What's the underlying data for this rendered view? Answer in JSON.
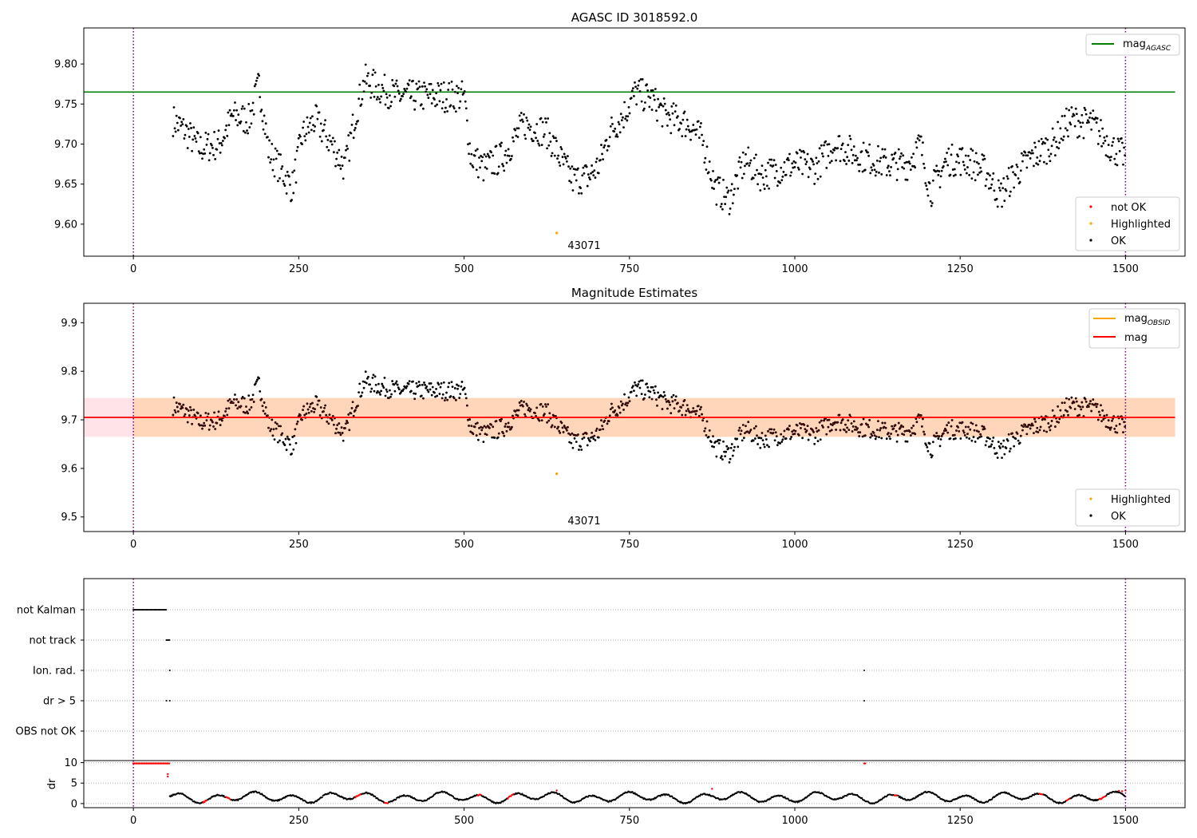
{
  "chart_data": [
    {
      "type": "scatter",
      "title": "AGASC ID 3018592.0",
      "x_range": [
        -75,
        1590
      ],
      "ylim": [
        9.56,
        9.845
      ],
      "x_ticks": [
        0,
        250,
        500,
        750,
        1000,
        1250,
        1500
      ],
      "y_ticks": [
        9.6,
        9.65,
        9.7,
        9.75,
        9.8
      ],
      "y_tick_labels": [
        "9.60",
        "9.65",
        "9.70",
        "9.75",
        "9.80"
      ],
      "vlines": [
        0,
        1500
      ],
      "obs_label": "43071",
      "hline": {
        "name": "mag_AGASC",
        "value": 9.765,
        "x_end": 1575,
        "color": "#008000"
      },
      "legend_upper": [
        {
          "label": "mag",
          "sub": "AGASC",
          "color": "#008000",
          "kind": "line"
        }
      ],
      "legend_lower": [
        {
          "label": "not OK",
          "color": "#ff0000",
          "kind": "dot"
        },
        {
          "label": "Highlighted",
          "color": "#ffa500",
          "kind": "dot"
        },
        {
          "label": "OK",
          "color": "#000000",
          "kind": "dot"
        }
      ],
      "highlighted_points": [
        [
          640,
          9.589
        ]
      ],
      "ok_series_anchor_points": [
        [
          60,
          9.73
        ],
        [
          80,
          9.715
        ],
        [
          100,
          9.695
        ],
        [
          130,
          9.7
        ],
        [
          150,
          9.735
        ],
        [
          175,
          9.73
        ],
        [
          190,
          9.775
        ],
        [
          205,
          9.69
        ],
        [
          225,
          9.665
        ],
        [
          240,
          9.645
        ],
        [
          255,
          9.71
        ],
        [
          275,
          9.73
        ],
        [
          300,
          9.7
        ],
        [
          320,
          9.67
        ],
        [
          335,
          9.735
        ],
        [
          350,
          9.78
        ],
        [
          370,
          9.77
        ],
        [
          400,
          9.76
        ],
        [
          450,
          9.76
        ],
        [
          500,
          9.76
        ],
        [
          510,
          9.685
        ],
        [
          530,
          9.67
        ],
        [
          560,
          9.685
        ],
        [
          590,
          9.725
        ],
        [
          625,
          9.715
        ],
        [
          650,
          9.675
        ],
        [
          665,
          9.655
        ],
        [
          690,
          9.66
        ],
        [
          705,
          9.675
        ],
        [
          720,
          9.715
        ],
        [
          740,
          9.735
        ],
        [
          760,
          9.765
        ],
        [
          785,
          9.755
        ],
        [
          805,
          9.735
        ],
        [
          840,
          9.725
        ],
        [
          860,
          9.705
        ],
        [
          880,
          9.645
        ],
        [
          900,
          9.63
        ],
        [
          925,
          9.68
        ],
        [
          950,
          9.66
        ],
        [
          980,
          9.67
        ],
        [
          1000,
          9.675
        ],
        [
          1030,
          9.67
        ],
        [
          1060,
          9.7
        ],
        [
          1100,
          9.685
        ],
        [
          1140,
          9.675
        ],
        [
          1170,
          9.675
        ],
        [
          1190,
          9.7
        ],
        [
          1205,
          9.64
        ],
        [
          1230,
          9.68
        ],
        [
          1260,
          9.68
        ],
        [
          1290,
          9.665
        ],
        [
          1310,
          9.635
        ],
        [
          1330,
          9.66
        ],
        [
          1360,
          9.685
        ],
        [
          1390,
          9.7
        ],
        [
          1415,
          9.73
        ],
        [
          1450,
          9.725
        ],
        [
          1480,
          9.695
        ],
        [
          1500,
          9.685
        ]
      ]
    },
    {
      "type": "scatter",
      "title": "Magnitude Estimates",
      "x_range": [
        -75,
        1590
      ],
      "ylim": [
        9.47,
        9.94
      ],
      "x_ticks": [
        0,
        250,
        500,
        750,
        1000,
        1250,
        1500
      ],
      "y_ticks": [
        9.5,
        9.6,
        9.7,
        9.8,
        9.9
      ],
      "y_tick_labels": [
        "9.5",
        "9.6",
        "9.7",
        "9.8",
        "9.9"
      ],
      "vlines": [
        0,
        1500
      ],
      "obs_label": "43071",
      "hline": {
        "name": "mag",
        "value": 9.705,
        "x_end": 1575,
        "color": "#ff0000"
      },
      "bands": [
        {
          "y0": 9.665,
          "y1": 9.745,
          "x0": -75,
          "x1": 1575,
          "color": "#ffc0cb",
          "opacity": 0.45
        },
        {
          "y0": 9.665,
          "y1": 9.745,
          "x0": 0,
          "x1": 1575,
          "color": "#ffa500",
          "opacity": 0.2
        }
      ],
      "legend_upper": [
        {
          "label": "mag",
          "sub": "OBSID",
          "color": "#ffa500",
          "kind": "line"
        },
        {
          "label": "mag",
          "sub": "",
          "color": "#ff0000",
          "kind": "line"
        }
      ],
      "legend_lower": [
        {
          "label": "Highlighted",
          "color": "#ffa500",
          "kind": "dot"
        },
        {
          "label": "OK",
          "color": "#000000",
          "kind": "dot"
        }
      ],
      "highlighted_points": [
        [
          640,
          9.589
        ]
      ]
    },
    {
      "type": "scatter",
      "title": "",
      "x_range": [
        -75,
        1590
      ],
      "x_ticks": [
        0,
        250,
        500,
        750,
        1000,
        1250,
        1500
      ],
      "vlines": [
        0,
        1500
      ],
      "flag_categories": [
        "not Kalman",
        "not track",
        "Ion. rad.",
        "dr > 5",
        "OBS not OK"
      ],
      "flags": {
        "not Kalman": [
          [
            0,
            50
          ]
        ],
        "not track": [
          [
            50,
            55
          ]
        ],
        "Ion. rad.": [
          [
            55,
            55
          ],
          [
            1105,
            1105
          ]
        ],
        "dr > 5": [
          [
            50,
            50
          ],
          [
            55,
            55
          ],
          [
            1105,
            1105
          ]
        ],
        "OBS not OK": []
      },
      "dr": {
        "ylabel": "dr",
        "y_ticks": [
          0,
          5,
          10
        ],
        "ylim": [
          -1,
          10.5
        ],
        "red_segments": [
          [
            0,
            55,
            9.8
          ],
          [
            1105,
            1107,
            9.8
          ]
        ],
        "red_dots": [
          [
            52,
            6.6
          ],
          [
            52,
            7.2
          ],
          [
            640,
            3.2
          ],
          [
            875,
            3.6
          ],
          [
            1500,
            3.2
          ],
          [
            1490,
            3.1
          ],
          [
            1495,
            3.0
          ]
        ],
        "baseline_range": [
          55,
          1500
        ]
      }
    }
  ]
}
